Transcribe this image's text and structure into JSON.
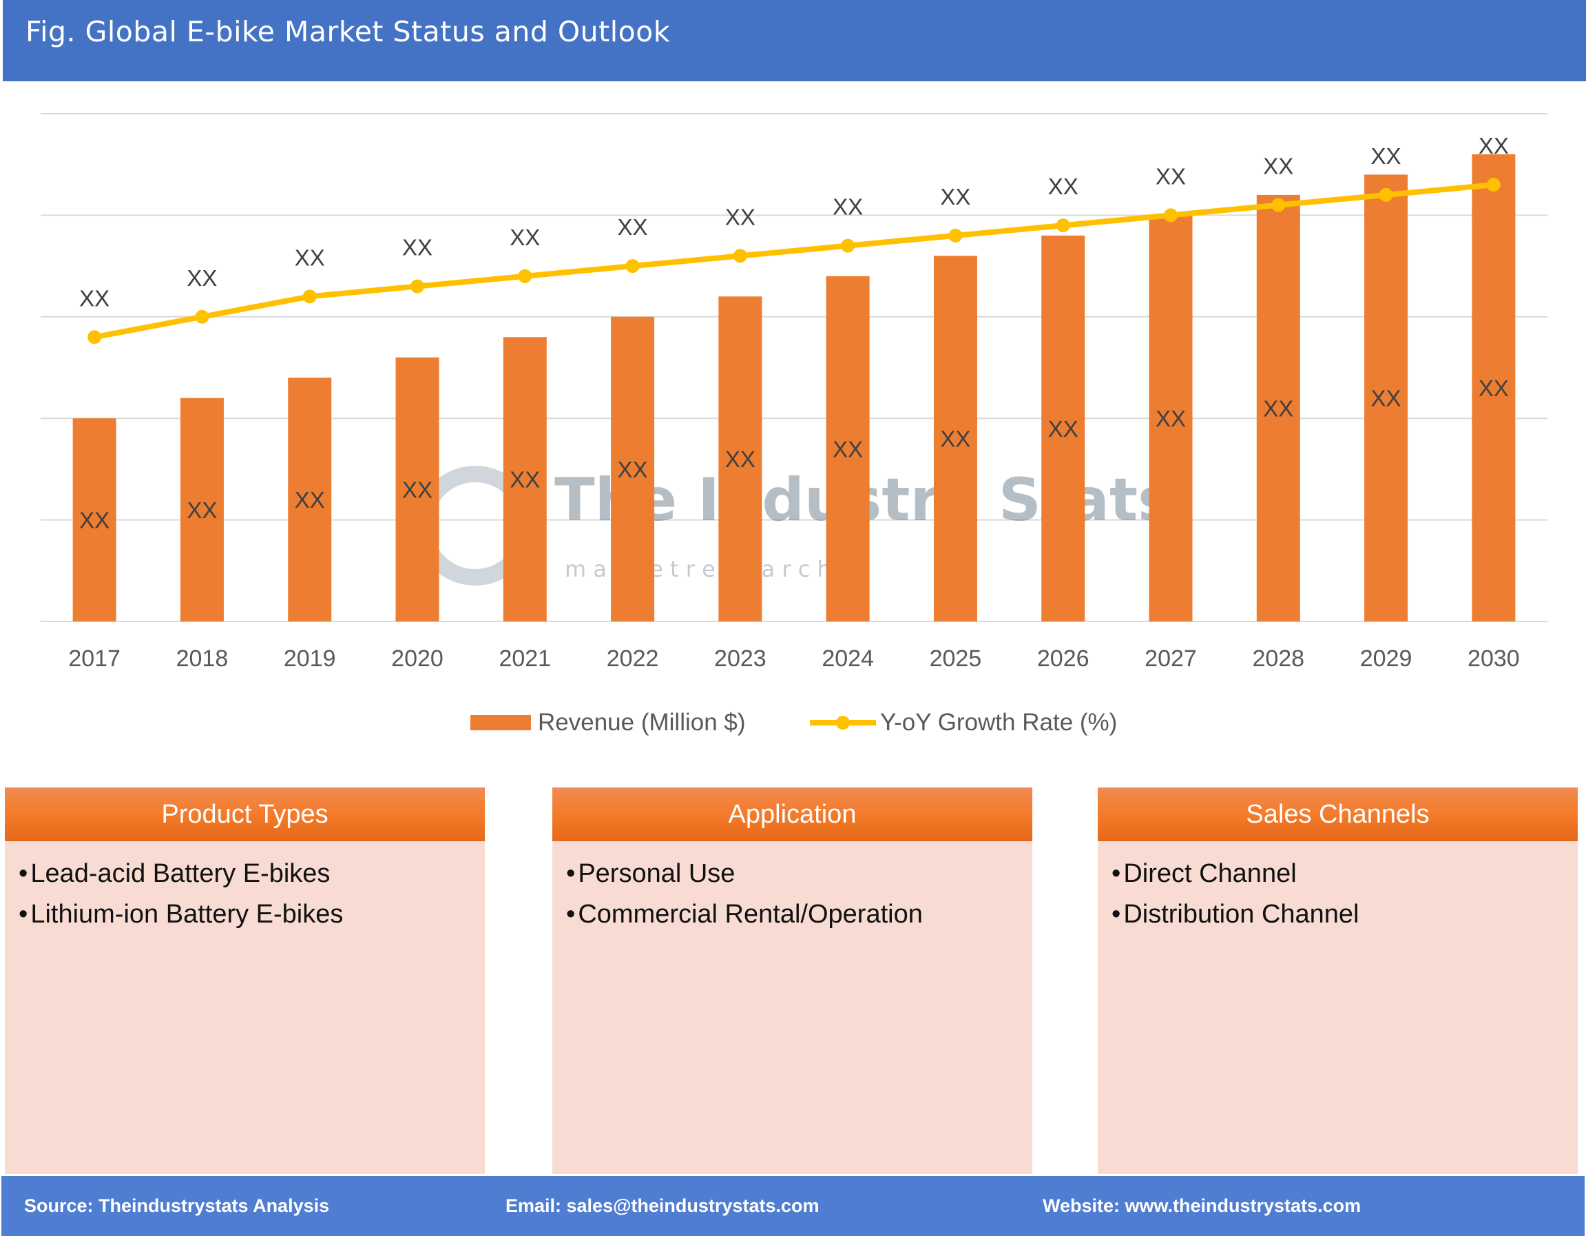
{
  "header": {
    "title": "Fig. Global E-bike Market Status and Outlook"
  },
  "watermark": {
    "name": "The Industry Stats",
    "tagline": "m a r k e t   r e s e a r c h"
  },
  "chart_data": {
    "type": "bar+line",
    "title": "",
    "xlabel": "",
    "ylabel": "",
    "categories": [
      "2017",
      "2018",
      "2019",
      "2020",
      "2021",
      "2022",
      "2023",
      "2024",
      "2025",
      "2026",
      "2027",
      "2028",
      "2029",
      "2030"
    ],
    "ylim": [
      0,
      5
    ],
    "grid": true,
    "legend_position": "bottom",
    "series": [
      {
        "name": "Revenue (Million $)",
        "type": "bar",
        "color": "#ed7d31",
        "values": [
          2.0,
          2.2,
          2.4,
          2.6,
          2.8,
          3.0,
          3.2,
          3.4,
          3.6,
          3.8,
          4.0,
          4.2,
          4.4,
          4.6
        ],
        "data_labels": [
          "XX",
          "XX",
          "XX",
          "XX",
          "XX",
          "XX",
          "XX",
          "XX",
          "XX",
          "XX",
          "XX",
          "XX",
          "XX",
          "XX"
        ]
      },
      {
        "name": "Y-oY Growth Rate (%)",
        "type": "line",
        "color": "#ffc000",
        "values": [
          2.8,
          3.0,
          3.2,
          3.3,
          3.4,
          3.5,
          3.6,
          3.7,
          3.8,
          3.9,
          4.0,
          4.1,
          4.2,
          4.3
        ],
        "data_labels": [
          "XX",
          "XX",
          "XX",
          "XX",
          "XX",
          "XX",
          "XX",
          "XX",
          "XX",
          "XX",
          "XX",
          "XX",
          "XX",
          "XX"
        ]
      }
    ]
  },
  "panels": [
    {
      "title": "Product Types",
      "items": [
        "Lead-acid Battery E-bikes",
        "Lithium-ion Battery E-bikes"
      ]
    },
    {
      "title": "Application",
      "items": [
        "Personal Use",
        "Commercial Rental/Operation"
      ]
    },
    {
      "title": "Sales Channels",
      "items": [
        "Direct Channel",
        "Distribution Channel"
      ]
    }
  ],
  "footer": {
    "source": "Source: Theindustrystats Analysis",
    "email": "Email: sales@theindustrystats.com",
    "website": "Website: www.theindustrystats.com"
  }
}
